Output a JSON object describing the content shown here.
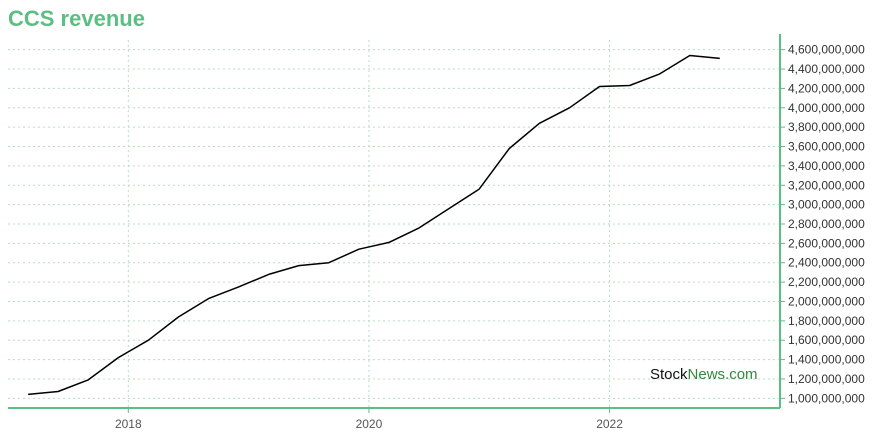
{
  "title": "CCS revenue",
  "watermark": {
    "part1": "Stock",
    "part2": "News.com"
  },
  "colors": {
    "title": "#5bbf82",
    "axis": "#5bbf82",
    "grid": "#b8dcc8",
    "line": "#000000",
    "watermark_accent": "#2e8b3d"
  },
  "chart_data": {
    "type": "line",
    "title": "CCS revenue",
    "xlabel": "",
    "ylabel": "",
    "x_ticks": [
      "2018",
      "2020",
      "2022"
    ],
    "y_ticks": [
      "1,000,000,000",
      "1,200,000,000",
      "1,400,000,000",
      "1,600,000,000",
      "1,800,000,000",
      "2,000,000,000",
      "2,200,000,000",
      "2,400,000,000",
      "2,600,000,000",
      "2,800,000,000",
      "3,000,000,000",
      "3,200,000,000",
      "3,400,000,000",
      "3,600,000,000",
      "3,800,000,000",
      "4,000,000,000",
      "4,200,000,000",
      "4,400,000,000",
      "4,600,000,000"
    ],
    "ylim": [
      900000000,
      4700000000
    ],
    "xlim": [
      "2017-01",
      "2023-06"
    ],
    "grid": true,
    "series": [
      {
        "x": [
          "2017-03",
          "2017-06",
          "2017-09",
          "2017-12",
          "2018-03",
          "2018-06",
          "2018-09",
          "2018-12",
          "2019-03",
          "2019-06",
          "2019-09",
          "2019-12",
          "2020-03",
          "2020-06",
          "2020-09",
          "2020-12",
          "2021-03",
          "2021-06",
          "2021-09",
          "2021-12",
          "2022-03",
          "2022-06",
          "2022-09",
          "2022-12"
        ],
        "values": [
          1040000000,
          1070000000,
          1190000000,
          1420000000,
          1600000000,
          1840000000,
          2030000000,
          2150000000,
          2280000000,
          2370000000,
          2400000000,
          2540000000,
          2610000000,
          2760000000,
          2960000000,
          3160000000,
          3580000000,
          3840000000,
          4000000000,
          4220000000,
          4230000000,
          4350000000,
          4540000000,
          4510000000
        ]
      }
    ]
  }
}
